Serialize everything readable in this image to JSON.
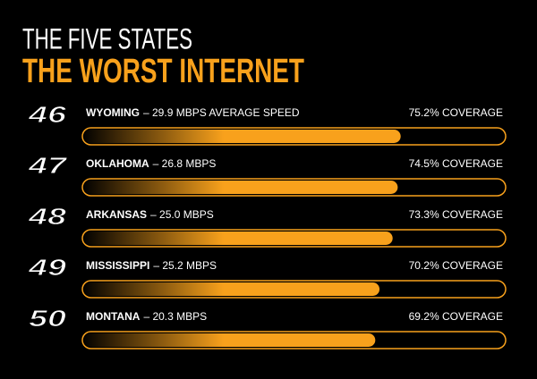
{
  "chart_data": {
    "type": "bar",
    "title": "THE FIVE STATES",
    "subtitle": "THE WORST INTERNET",
    "ranks": [
      46,
      47,
      48,
      49,
      50
    ],
    "categories": [
      "WYOMING",
      "OKLAHOMA",
      "ARKANSAS",
      "MISSISSIPPI",
      "MONTANA"
    ],
    "speed_labels": [
      "– 29.9 MBPS AVERAGE SPEED",
      "– 26.8 MBPS",
      "– 25.0 MBPS",
      "– 25.2 MBPS",
      "– 20.3 MBPS"
    ],
    "values": [
      75.2,
      74.5,
      73.3,
      70.2,
      69.2
    ],
    "value_labels": [
      "75.2% COVERAGE",
      "74.5% COVERAGE",
      "73.3% COVERAGE",
      "70.2% COVERAGE",
      "69.2% COVERAGE"
    ],
    "xlim": [
      0,
      100
    ],
    "color": "#f8a11c"
  }
}
